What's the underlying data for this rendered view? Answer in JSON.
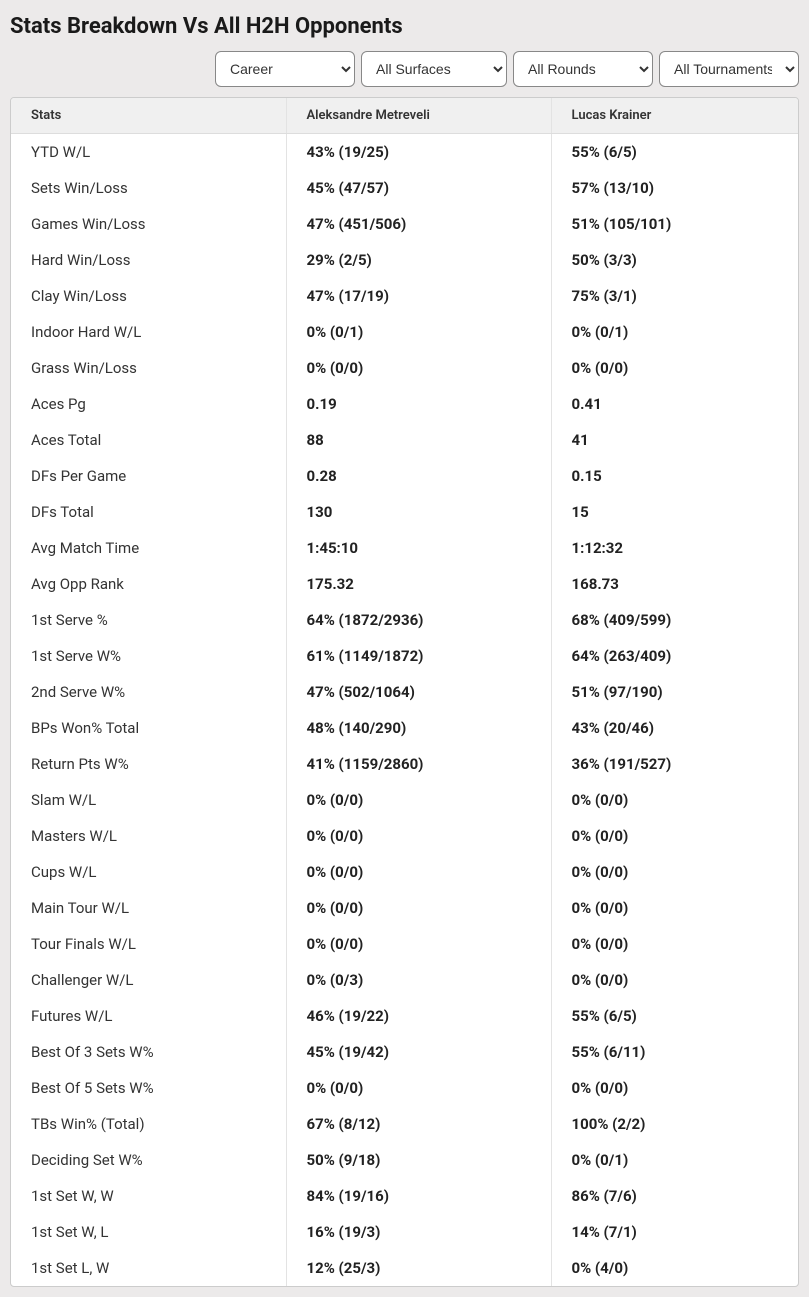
{
  "title": "Stats Breakdown Vs All H2H Opponents",
  "filters": {
    "period": {
      "selected": "Career",
      "options": [
        "Career"
      ]
    },
    "surface": {
      "selected": "All Surfaces",
      "options": [
        "All Surfaces"
      ]
    },
    "round": {
      "selected": "All Rounds",
      "options": [
        "All Rounds"
      ]
    },
    "tournament": {
      "selected": "All Tournaments",
      "options": [
        "All Tournaments"
      ]
    }
  },
  "columns": {
    "stats": "Stats",
    "player1": "Aleksandre Metreveli",
    "player2": "Lucas Krainer"
  },
  "rows": [
    {
      "stat": "YTD W/L",
      "p1": "43% (19/25)",
      "p2": "55% (6/5)"
    },
    {
      "stat": "Sets Win/Loss",
      "p1": "45% (47/57)",
      "p2": "57% (13/10)"
    },
    {
      "stat": "Games Win/Loss",
      "p1": "47% (451/506)",
      "p2": "51% (105/101)"
    },
    {
      "stat": "Hard Win/Loss",
      "p1": "29% (2/5)",
      "p2": "50% (3/3)"
    },
    {
      "stat": "Clay Win/Loss",
      "p1": "47% (17/19)",
      "p2": "75% (3/1)"
    },
    {
      "stat": "Indoor Hard W/L",
      "p1": "0% (0/1)",
      "p2": "0% (0/1)"
    },
    {
      "stat": "Grass Win/Loss",
      "p1": "0% (0/0)",
      "p2": "0% (0/0)"
    },
    {
      "stat": "Aces Pg",
      "p1": "0.19",
      "p2": "0.41"
    },
    {
      "stat": "Aces Total",
      "p1": "88",
      "p2": "41"
    },
    {
      "stat": "DFs Per Game",
      "p1": "0.28",
      "p2": "0.15"
    },
    {
      "stat": "DFs Total",
      "p1": "130",
      "p2": "15"
    },
    {
      "stat": "Avg Match Time",
      "p1": "1:45:10",
      "p2": "1:12:32"
    },
    {
      "stat": "Avg Opp Rank",
      "p1": "175.32",
      "p2": "168.73"
    },
    {
      "stat": "1st Serve %",
      "p1": "64% (1872/2936)",
      "p2": "68% (409/599)"
    },
    {
      "stat": "1st Serve W%",
      "p1": "61% (1149/1872)",
      "p2": "64% (263/409)"
    },
    {
      "stat": "2nd Serve W%",
      "p1": "47% (502/1064)",
      "p2": "51% (97/190)"
    },
    {
      "stat": "BPs Won% Total",
      "p1": "48% (140/290)",
      "p2": "43% (20/46)"
    },
    {
      "stat": "Return Pts W%",
      "p1": "41% (1159/2860)",
      "p2": "36% (191/527)"
    },
    {
      "stat": "Slam W/L",
      "p1": "0% (0/0)",
      "p2": "0% (0/0)"
    },
    {
      "stat": "Masters W/L",
      "p1": "0% (0/0)",
      "p2": "0% (0/0)"
    },
    {
      "stat": "Cups W/L",
      "p1": "0% (0/0)",
      "p2": "0% (0/0)"
    },
    {
      "stat": "Main Tour W/L",
      "p1": "0% (0/0)",
      "p2": "0% (0/0)"
    },
    {
      "stat": "Tour Finals W/L",
      "p1": "0% (0/0)",
      "p2": "0% (0/0)"
    },
    {
      "stat": "Challenger W/L",
      "p1": "0% (0/3)",
      "p2": "0% (0/0)"
    },
    {
      "stat": "Futures W/L",
      "p1": "46% (19/22)",
      "p2": "55% (6/5)"
    },
    {
      "stat": "Best Of 3 Sets W%",
      "p1": "45% (19/42)",
      "p2": "55% (6/11)"
    },
    {
      "stat": "Best Of 5 Sets W%",
      "p1": "0% (0/0)",
      "p2": "0% (0/0)"
    },
    {
      "stat": "TBs Win% (Total)",
      "p1": "67% (8/12)",
      "p2": "100% (2/2)"
    },
    {
      "stat": "Deciding Set W%",
      "p1": "50% (9/18)",
      "p2": "0% (0/1)"
    },
    {
      "stat": "1st Set W, W",
      "p1": "84% (19/16)",
      "p2": "86% (7/6)"
    },
    {
      "stat": "1st Set W, L",
      "p1": "16% (19/3)",
      "p2": "14% (7/1)"
    },
    {
      "stat": "1st Set L, W",
      "p1": "12% (25/3)",
      "p2": "0% (4/0)"
    }
  ]
}
